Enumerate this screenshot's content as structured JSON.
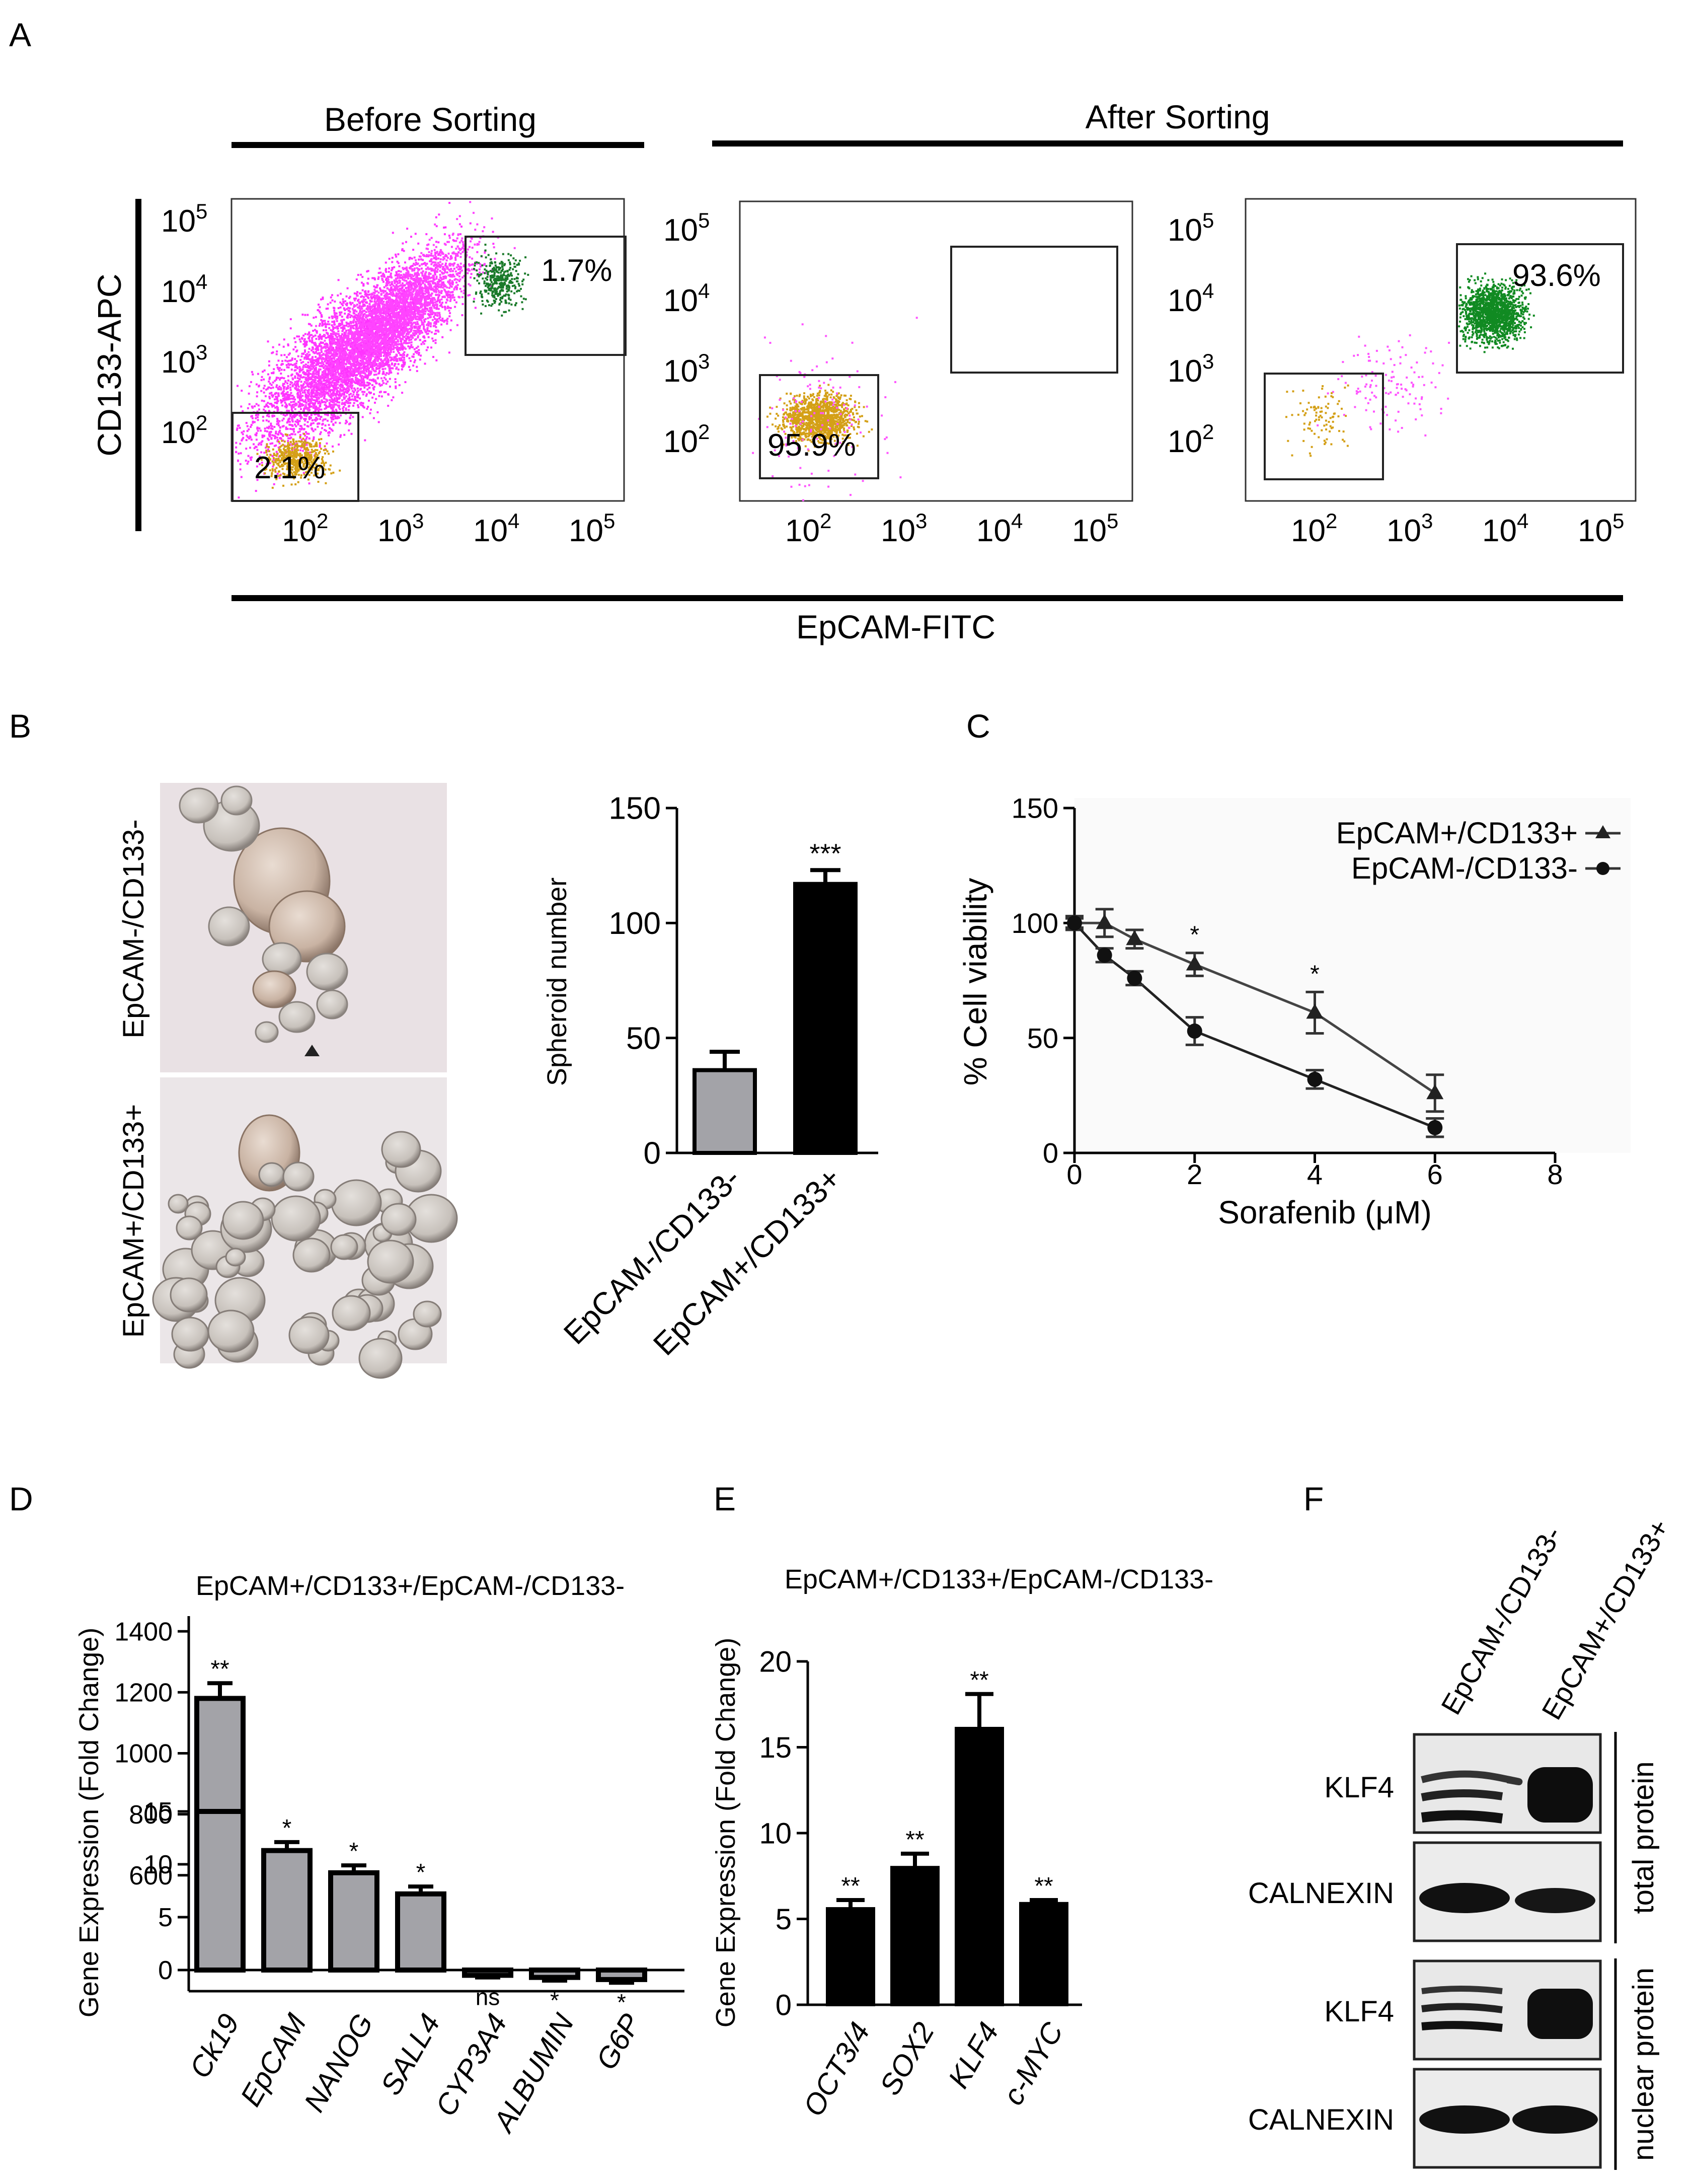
{
  "panels": {
    "A": "A",
    "B": "B",
    "C": "C",
    "D": "D",
    "E": "E",
    "F": "F"
  },
  "panel_a": {
    "before_label": "Before Sorting",
    "after_label": "After Sorting",
    "y_axis": "CD133-APC",
    "x_axis": "EpCAM-FITC",
    "plots": [
      {
        "name": "before",
        "gates": [
          {
            "pct": "1.7%",
            "tone": "green"
          },
          {
            "pct": "2.1%",
            "tone": "gold"
          }
        ]
      },
      {
        "name": "after-neg",
        "gates": [
          {
            "pct": "95.9%",
            "tone": "gold"
          },
          {
            "pct": "",
            "tone": "magenta"
          }
        ]
      },
      {
        "name": "after-pos",
        "gates": [
          {
            "pct": "93.6%",
            "tone": "green"
          },
          {
            "pct": "",
            "tone": "gold"
          }
        ]
      }
    ],
    "ticks": [
      "10",
      "2",
      "3",
      "4",
      "5"
    ]
  },
  "panel_b": {
    "photo_labels": [
      "EpCAM-/CD133-",
      "EpCAM+/CD133+"
    ]
  },
  "panel_c": {
    "legend": [
      "EpCAM+/CD133+",
      "EpCAM-/CD133-"
    ]
  },
  "panel_f": {
    "lanes": [
      "EpCAM-/CD133-",
      "EpCAM+/CD133+"
    ],
    "rows": [
      "KLF4",
      "CALNEXIN",
      "KLF4",
      "CALNEXIN"
    ],
    "groups": [
      "total protein",
      "nuclear protein"
    ]
  },
  "chart_data": [
    {
      "id": "B",
      "type": "bar",
      "categories": [
        "EpCAM-/CD133-",
        "EpCAM+/CD133+"
      ],
      "values": [
        36,
        117
      ],
      "errors": [
        8,
        6
      ],
      "ylabel": "Spheroid number",
      "ylim": [
        0,
        150
      ],
      "yticks": [
        0,
        50,
        100,
        150
      ],
      "annotations": [
        "",
        "***"
      ],
      "colors": [
        "#a3a3a8",
        "#000000"
      ]
    },
    {
      "id": "C",
      "type": "line",
      "xlabel": "Sorafenib (μM)",
      "ylabel": "% Cell viability",
      "xlim": [
        0,
        8
      ],
      "ylim": [
        0,
        150
      ],
      "xticks": [
        0,
        2,
        4,
        6,
        8
      ],
      "yticks": [
        0,
        50,
        100,
        150
      ],
      "series": [
        {
          "name": "EpCAM+/CD133+",
          "marker": "triangle",
          "x": [
            0,
            0.5,
            1,
            2,
            4,
            6
          ],
          "y": [
            100,
            100,
            93,
            82,
            61,
            26
          ],
          "err": [
            3,
            6,
            4,
            5,
            9,
            8
          ]
        },
        {
          "name": "EpCAM-/CD133-",
          "marker": "circle",
          "x": [
            0,
            0.5,
            1,
            2,
            4,
            6
          ],
          "y": [
            100,
            86,
            76,
            53,
            32,
            11
          ],
          "err": [
            2,
            3,
            3,
            6,
            4,
            4
          ]
        }
      ],
      "annotations": [
        {
          "x": 2,
          "text": "*"
        },
        {
          "x": 4,
          "text": "*"
        }
      ]
    },
    {
      "id": "D",
      "type": "bar",
      "title": "EpCAM+/CD133+/EpCAM-/CD133-",
      "ylabel": "Gene Expression (Fold Change)",
      "categories": [
        "Ck19",
        "EpCAM",
        "NANOG",
        "SALL4",
        "CYP3A4",
        "ALBUMIN",
        "G6P"
      ],
      "values": [
        1180,
        11.3,
        9.2,
        7.2,
        -0.5,
        -0.7,
        -0.9
      ],
      "errors": [
        50,
        0.8,
        0.7,
        0.7,
        0.2,
        0.3,
        0.3
      ],
      "annotations": [
        "**",
        "*",
        "*",
        "*",
        "ns",
        "*",
        "*"
      ],
      "upper_ylim": [
        550,
        1450
      ],
      "upper_ticks": [
        600,
        800,
        1000,
        1200,
        1400
      ],
      "lower_ylim": [
        -2,
        15
      ],
      "lower_ticks": [
        0,
        5,
        10,
        15
      ],
      "color": "#a3a3a8"
    },
    {
      "id": "E",
      "type": "bar",
      "title": "EpCAM+/CD133+/EpCAM-/CD133-",
      "ylabel": "Gene Expression (Fold Change)",
      "categories": [
        "OCT3/4",
        "SOX2",
        "KLF4",
        "c-MYC"
      ],
      "values": [
        5.6,
        8.0,
        16.1,
        5.9
      ],
      "errors": [
        0.5,
        0.8,
        2.0,
        0.2
      ],
      "annotations": [
        "**",
        "**",
        "**",
        "**"
      ],
      "ylim": [
        0,
        20
      ],
      "yticks": [
        0,
        5,
        10,
        15,
        20
      ],
      "color": "#000000"
    }
  ]
}
